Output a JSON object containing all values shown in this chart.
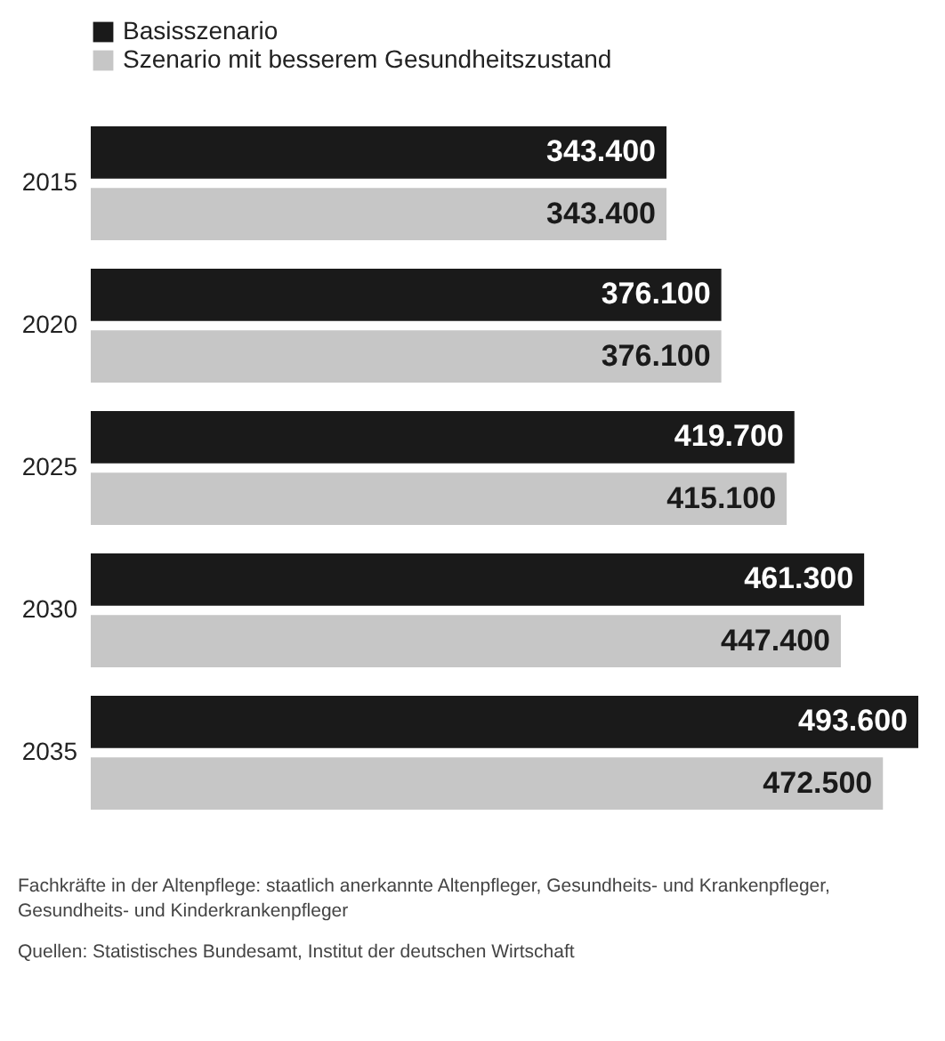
{
  "chart_data": {
    "type": "bar",
    "orientation": "horizontal",
    "categories": [
      "2015",
      "2020",
      "2025",
      "2030",
      "2035"
    ],
    "series": [
      {
        "name": "Basisszenario",
        "color": "#1a1a1a",
        "values": [
          343400,
          376100,
          419700,
          461300,
          493600
        ],
        "value_labels": [
          "343.400",
          "376.100",
          "419.700",
          "461.300",
          "493.600"
        ]
      },
      {
        "name": "Szenario mit besserem Gesundheitszustand",
        "color": "#c6c6c6",
        "values": [
          343400,
          376100,
          415100,
          447400,
          472500
        ],
        "value_labels": [
          "343.400",
          "376.100",
          "415.100",
          "447.400",
          "472.500"
        ]
      }
    ],
    "legend": "top left",
    "grid": false,
    "annotations": [
      "Fachkräfte in der Altenpflege: staatlich anerkannte Altenpfleger, Gesundheits- und Krankenpfleger, Gesundheits- und Kinderkrankenpfleger",
      "Quellen: Statistisches Bundesamt, Institut der deutschen Wirtschaft"
    ]
  }
}
